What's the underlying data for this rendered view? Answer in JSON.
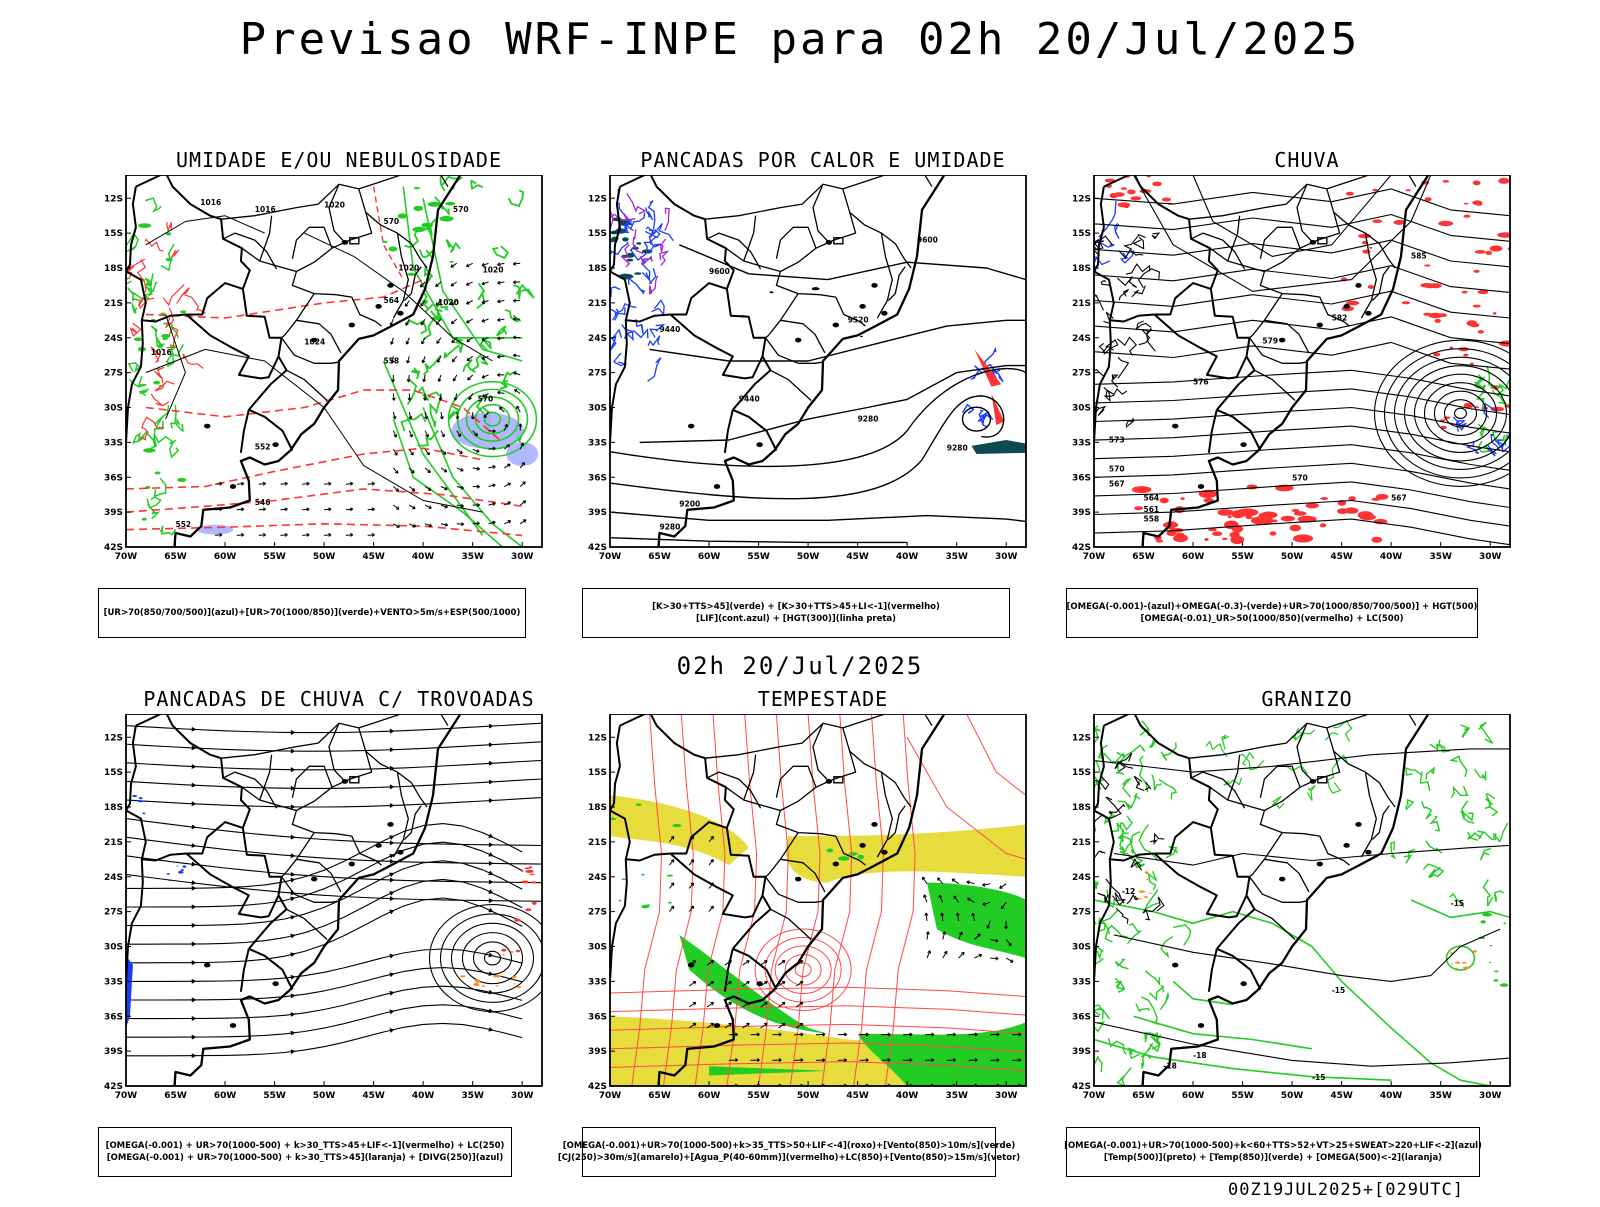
{
  "title": "Previsao WRF-INPE  para 02h 20/Jul/2025",
  "mid_date": "02h 20/Jul/2025",
  "footer": "00Z19JUL2025+[029UTC]",
  "axes": {
    "lat_labels": [
      "12S",
      "15S",
      "18S",
      "21S",
      "24S",
      "27S",
      "30S",
      "33S",
      "36S",
      "39S",
      "42S"
    ],
    "lon_labels": [
      "70W",
      "65W",
      "60W",
      "55W",
      "50W",
      "45W",
      "40W",
      "35W",
      "30W"
    ]
  },
  "colors": {
    "blue": "#1a3cff",
    "green": "#22cc22",
    "red": "#ff3333",
    "lavender": "#aab0ff",
    "yellow": "#e6dc3c",
    "orange": "#ff8c1a",
    "teal": "#0c4a50",
    "purple": "#aa22cc"
  },
  "panels": [
    {
      "id": "umidade",
      "title": "UMIDADE E/OU NEBULOSIDADE",
      "legend": [
        "[UR>70(850/700/500)](azul)+[UR>70(1000/850)](verde)+VENTO>5m/s+ESP(500/1000)"
      ],
      "contour_labels": [
        "1016",
        "1016",
        "1020",
        "1020",
        "1020",
        "1020",
        "1024",
        "1016",
        "570",
        "570",
        "570",
        "564",
        "558",
        "552",
        "546",
        "552"
      ]
    },
    {
      "id": "pancadas-calor",
      "title": "PANCADAS POR CALOR E UMIDADE",
      "legend": [
        "[K>30+TTS>45](verde) + [K>30+TTS>45+LI<-1](vermelho)",
        "[LIF](cont.azul) + [HGT(300)](linha preta)"
      ],
      "contour_labels": [
        "9600",
        "9600",
        "9520",
        "9440",
        "9440",
        "9280",
        "9200",
        "9280",
        "9280"
      ]
    },
    {
      "id": "chuva",
      "title": "CHUVA",
      "legend": [
        "[OMEGA(-0.001)-(azul)+OMEGA(-0.3)-(verde)+UR>70(1000/850/700/500)] + HGT(500)",
        "[OMEGA(-0.01)_UR>50(1000/850)(vermelho) + LC(500)"
      ],
      "contour_labels": [
        "585",
        "582",
        "579",
        "576",
        "573",
        "570",
        "567",
        "564",
        "561",
        "558",
        "570",
        "567"
      ]
    },
    {
      "id": "pancadas-trovoadas",
      "title": "PANCADAS DE CHUVA C/ TROVOADAS",
      "legend": [
        "[OMEGA(-0.001) + UR>70(1000-500) + k>30_TTS>45+LIF<-1](vermelho) + LC(250)",
        "[OMEGA(-0.001) + UR>70(1000-500) + k>30_TTS>45](laranja) + [DIVG(250)](azul)"
      ],
      "contour_labels": []
    },
    {
      "id": "tempestade",
      "title": "TEMPESTADE",
      "legend": [
        "[OMEGA(-0.001)+UR>70(1000-500)+k>35_TTS>50+LIF<-4](roxo)+[Vento(850)>10m/s](verde)",
        "[CJ(250)>30m/s](amarelo)+[Agua_P(40-60mm)](vermelho)+LC(850)+[Vento(850)>15m/s](vetor)"
      ],
      "contour_labels": []
    },
    {
      "id": "granizo",
      "title": "GRANIZO",
      "legend": [
        "[OMEGA(-0.001)+UR>70(1000-500)+k<60+TTS>52+VT>25+SWEAT>220+LIF<-2](azul)",
        "[Temp(500)](preto) + [Temp(850)](verde) + [OMEGA(500)<-2](laranja)"
      ],
      "contour_labels": [
        "-12",
        "-15",
        "-15",
        "-18",
        "-18",
        "-15"
      ]
    }
  ]
}
